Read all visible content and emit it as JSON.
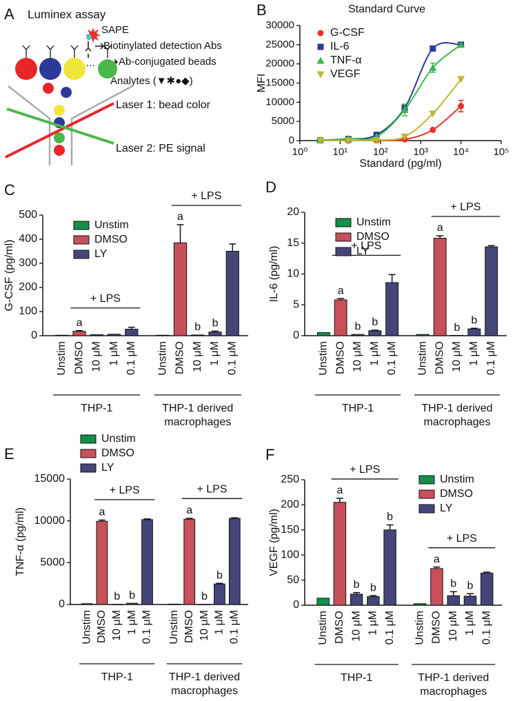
{
  "diagram": {
    "panel": "A",
    "title": "Luminex assay",
    "sape": "SAPE",
    "detection": "Biotinylated detection Abs",
    "ellipsis": "...",
    "beads": "Ab-conjugated beads",
    "analytes": "Analytes (▼✱●◆)",
    "laser1": "Laser 1: bead color",
    "laser2": "Laser 2: PE signal"
  },
  "chart_data": [
    {
      "panel": "B",
      "type": "line",
      "title": "Standard Curve",
      "x_label": "Standard (pg/ml)",
      "y_label": "MFI",
      "xscale": "log",
      "xlim": [
        1,
        100000
      ],
      "xticks": [
        {
          "value": 1,
          "label": "10⁰"
        },
        {
          "value": 10,
          "label": "10¹"
        },
        {
          "value": 100,
          "label": "10²"
        },
        {
          "value": 1000,
          "label": "10³"
        },
        {
          "value": 10000,
          "label": "10⁴"
        },
        {
          "value": 100000,
          "label": "10⁵"
        }
      ],
      "ylim": [
        0,
        30000
      ],
      "yticks": [
        0,
        5000,
        10000,
        15000,
        20000,
        25000,
        30000
      ],
      "legend": "upper left",
      "x": [
        3.2,
        16,
        80,
        400,
        2000,
        10000
      ],
      "series": [
        {
          "name": "G-CSF",
          "color": "#e8302a",
          "marker": "circle",
          "values": [
            0,
            0,
            50,
            300,
            2800,
            9000
          ],
          "errors": [
            null,
            null,
            null,
            null,
            null,
            1500
          ]
        },
        {
          "name": "IL-6",
          "color": "#2a3a9a",
          "marker": "square",
          "values": [
            100,
            400,
            1500,
            8500,
            24000,
            25000
          ],
          "errors": [
            null,
            null,
            null,
            1000,
            null,
            null
          ]
        },
        {
          "name": "TNF-α",
          "color": "#3ab54a",
          "marker": "triangle-up",
          "values": [
            100,
            500,
            1000,
            8000,
            19000,
            25000
          ],
          "errors": [
            null,
            null,
            null,
            1500,
            1200,
            null
          ]
        },
        {
          "name": "VEGF",
          "color": "#bcb830",
          "marker": "triangle-down",
          "values": [
            0,
            0,
            100,
            1000,
            7000,
            16000
          ],
          "errors": [
            null,
            null,
            null,
            null,
            null,
            null
          ]
        }
      ]
    },
    {
      "panel": "C",
      "type": "bar",
      "y_label": "G-CSF (pg/ml)",
      "ylim": [
        0,
        500
      ],
      "yticks": [
        0,
        100,
        200,
        300,
        400,
        500
      ],
      "legend": "upper left",
      "categories": [
        "Unstim",
        "DMSO",
        "10 μM",
        "1 μM",
        "0.1 μM",
        "Unstim",
        "DMSO",
        "10 μM",
        "1 μM",
        "0.1 μM"
      ],
      "groups": [
        {
          "label": [
            "THP-1"
          ],
          "bracket": "+ LPS"
        },
        {
          "label": [
            "THP-1 derived",
            "macrophages"
          ],
          "bracket": "+ LPS"
        }
      ],
      "series": [
        {
          "name": "Unstim",
          "color": "#149048",
          "values": [
            2,
            null,
            null,
            null,
            null,
            2,
            null,
            null,
            null,
            null
          ]
        },
        {
          "name": "DMSO",
          "color": "#c8505a",
          "values": [
            null,
            18,
            null,
            null,
            null,
            null,
            385,
            null,
            null,
            null
          ],
          "errors": [
            null,
            3,
            null,
            null,
            null,
            null,
            75,
            null,
            null,
            null
          ]
        },
        {
          "name": "LY",
          "color": "#45457a",
          "values": [
            null,
            null,
            4,
            6,
            27,
            null,
            null,
            3,
            15,
            350
          ],
          "errors": [
            null,
            null,
            null,
            null,
            8,
            null,
            null,
            null,
            4,
            30
          ]
        }
      ],
      "bar_labels": [
        null,
        "a",
        null,
        null,
        null,
        null,
        "a",
        "b",
        "b",
        null
      ]
    },
    {
      "panel": "D",
      "type": "bar",
      "y_label": "IL-6 (pg/ml)",
      "ylim": [
        0,
        20
      ],
      "yticks": [
        0,
        5,
        10,
        15,
        20
      ],
      "legend": "upper left",
      "categories": [
        "Unstim",
        "DMSO",
        "10 μM",
        "1 μM",
        "0.1 μM",
        "Unstim",
        "DMSO",
        "10 μM",
        "1 μM",
        "0.1 μM"
      ],
      "groups": [
        {
          "label": [
            "THP-1"
          ],
          "bracket": "+ LPS"
        },
        {
          "label": [
            "THP-1 derived",
            "macrophages"
          ],
          "bracket": "+ LPS"
        }
      ],
      "series": [
        {
          "name": "Unstim",
          "color": "#149048",
          "values": [
            0.5,
            null,
            null,
            null,
            null,
            0.2,
            null,
            null,
            null,
            null
          ]
        },
        {
          "name": "DMSO",
          "color": "#c8505a",
          "values": [
            null,
            5.8,
            null,
            null,
            null,
            null,
            15.8,
            null,
            null,
            null
          ],
          "errors": [
            null,
            0.2,
            null,
            null,
            null,
            null,
            0.4,
            null,
            null,
            null
          ]
        },
        {
          "name": "LY",
          "color": "#45457a",
          "values": [
            null,
            null,
            0.2,
            0.8,
            8.6,
            null,
            null,
            0.05,
            1.1,
            14.4
          ],
          "errors": [
            null,
            null,
            null,
            0.1,
            1.3,
            null,
            null,
            null,
            0.1,
            0.2
          ]
        }
      ],
      "bar_labels": [
        null,
        "a",
        "b",
        "b",
        null,
        null,
        "a",
        "b",
        "b",
        null
      ]
    },
    {
      "panel": "E",
      "type": "bar",
      "y_label": "TNF-α (pg/ml)",
      "ylim": [
        0,
        15000
      ],
      "yticks": [
        0,
        5000,
        10000,
        15000
      ],
      "legend": "top",
      "categories": [
        "Unstim",
        "DMSO",
        "10 μM",
        "1 μM",
        "0.1 μM",
        "Unstim",
        "DMSO",
        "10 μM",
        "1 μM",
        "0.1 μM"
      ],
      "groups": [
        {
          "label": [
            "THP-1"
          ],
          "bracket": "+ LPS"
        },
        {
          "label": [
            "THP-1 derived",
            "macrophages"
          ],
          "bracket": "+ LPS"
        }
      ],
      "series": [
        {
          "name": "Unstim",
          "color": "#149048",
          "values": [
            100,
            null,
            null,
            null,
            null,
            50,
            null,
            null,
            null,
            null
          ]
        },
        {
          "name": "DMSO",
          "color": "#c8505a",
          "values": [
            null,
            9950,
            null,
            null,
            null,
            null,
            10200,
            null,
            null,
            null
          ],
          "errors": [
            null,
            150,
            null,
            null,
            null,
            null,
            100,
            null,
            null,
            null
          ]
        },
        {
          "name": "LY",
          "color": "#45457a",
          "values": [
            null,
            null,
            20,
            150,
            10150,
            null,
            null,
            20,
            2450,
            10300
          ],
          "errors": [
            null,
            null,
            null,
            null,
            80,
            null,
            null,
            null,
            80,
            60
          ]
        }
      ],
      "bar_labels": [
        null,
        "a",
        "b",
        "b",
        null,
        null,
        "a",
        "b",
        "b",
        null
      ]
    },
    {
      "panel": "F",
      "type": "bar",
      "y_label": "VEGF (pg/ml)",
      "ylim": [
        0,
        250
      ],
      "yticks": [
        0,
        50,
        100,
        150,
        200,
        250
      ],
      "legend": "upper right",
      "categories": [
        "Unstim",
        "DMSO",
        "10 μM",
        "1 μM",
        "0.1 μM",
        "Unstim",
        "DMSO",
        "10 μM",
        "1 μM",
        "0.1 μM"
      ],
      "groups": [
        {
          "label": [
            "THP-1"
          ],
          "bracket": "+ LPS"
        },
        {
          "label": [
            "THP-1 derived",
            "macrophages"
          ],
          "bracket": "+ LPS"
        }
      ],
      "series": [
        {
          "name": "Unstim",
          "color": "#149048",
          "values": [
            14,
            null,
            null,
            null,
            null,
            3,
            null,
            null,
            null,
            null
          ]
        },
        {
          "name": "DMSO",
          "color": "#c8505a",
          "values": [
            null,
            205,
            null,
            null,
            null,
            null,
            73,
            null,
            null,
            null
          ],
          "errors": [
            null,
            8,
            null,
            null,
            null,
            null,
            3,
            null,
            null,
            null
          ]
        },
        {
          "name": "LY",
          "color": "#45457a",
          "values": [
            null,
            null,
            22,
            17,
            150,
            null,
            null,
            19,
            18,
            64
          ],
          "errors": [
            null,
            null,
            3,
            2,
            10,
            null,
            null,
            8,
            5,
            2
          ]
        }
      ],
      "bar_labels": [
        null,
        "a",
        "b",
        "b",
        "b",
        null,
        "a",
        "b",
        "b",
        null
      ]
    }
  ]
}
